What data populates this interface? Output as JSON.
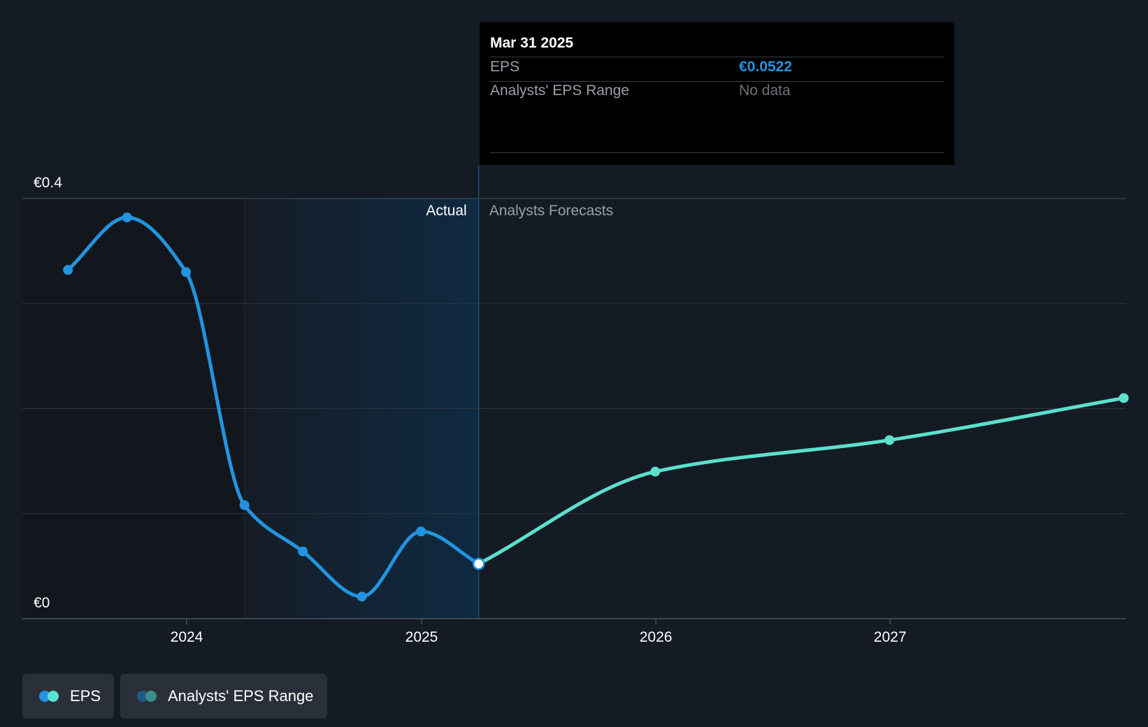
{
  "colors": {
    "background": "#151b24",
    "actual_line": "#2394df",
    "forecast_line": "#5ce0cf",
    "actual_band": "#0f2a42",
    "grid": "#2e3540",
    "axis_text": "#ffffff",
    "tooltip_bg": "#000000",
    "tooltip_value": "#2394df",
    "tooltip_nodata": "#6c7178"
  },
  "tooltip": {
    "date": "Mar 31 2025",
    "rows": [
      {
        "label": "EPS",
        "value": "€0.0522"
      },
      {
        "label": "Analysts' EPS Range",
        "value": "No data"
      }
    ]
  },
  "sections": {
    "actual_label": "Actual",
    "forecast_label": "Analysts Forecasts"
  },
  "legend": [
    {
      "label": "EPS",
      "icon": "eps-dots-icon",
      "colors": [
        "#2394df",
        "#5ce0cf"
      ]
    },
    {
      "label": "Analysts' EPS Range",
      "icon": "range-dots-icon",
      "colors": [
        "#1e5a85",
        "#3a8f86"
      ]
    }
  ],
  "chart_data": {
    "type": "line",
    "title": "",
    "xlabel": "",
    "ylabel": "",
    "y_axis": {
      "min": 0,
      "max": 0.4,
      "tick_labels": [
        "€0",
        "€0.4"
      ]
    },
    "x_axis": {
      "ticks": [
        "2024",
        "2025",
        "2026",
        "2027"
      ]
    },
    "grid": "horizontal",
    "legend_position": "bottom-left",
    "past_band": {
      "start": "2024-03-31",
      "end": "2025-03-31"
    },
    "series": [
      {
        "name": "EPS",
        "segment": "actual",
        "points": [
          {
            "x": "2023-06-30",
            "y": 0.332
          },
          {
            "x": "2023-09-30",
            "y": 0.382
          },
          {
            "x": "2023-12-31",
            "y": 0.33
          },
          {
            "x": "2024-03-31",
            "y": 0.108
          },
          {
            "x": "2024-06-30",
            "y": 0.064
          },
          {
            "x": "2024-09-30",
            "y": 0.021
          },
          {
            "x": "2024-12-31",
            "y": 0.083
          },
          {
            "x": "2025-03-31",
            "y": 0.0522
          }
        ]
      },
      {
        "name": "EPS",
        "segment": "forecast",
        "points": [
          {
            "x": "2025-03-31",
            "y": 0.0522
          },
          {
            "x": "2025-12-31",
            "y": 0.14
          },
          {
            "x": "2026-12-31",
            "y": 0.17
          },
          {
            "x": "2027-12-31",
            "y": 0.21
          }
        ]
      }
    ]
  }
}
